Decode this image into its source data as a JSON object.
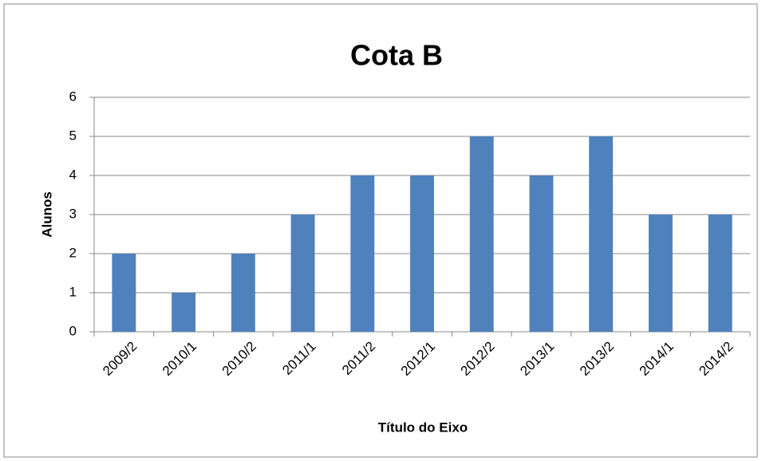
{
  "chart_data": {
    "type": "bar",
    "title": "Cota B",
    "x_label": "Título do Eixo",
    "y_label": "Alunos",
    "categories": [
      "2009/2",
      "2010/1",
      "2010/2",
      "2011/1",
      "2011/2",
      "2012/1",
      "2012/2",
      "2013/1",
      "2013/2",
      "2014/1",
      "2014/2"
    ],
    "values": [
      2,
      1,
      2,
      3,
      4,
      4,
      5,
      4,
      5,
      3,
      3
    ],
    "color": "#4f81bd",
    "ylim": [
      0,
      6
    ],
    "yticks": [
      0,
      1,
      2,
      3,
      4,
      5,
      6
    ],
    "grid": true
  }
}
